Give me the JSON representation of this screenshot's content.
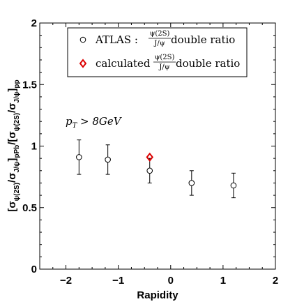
{
  "chart_data": {
    "type": "scatter",
    "xlabel": "Rapidity",
    "ylabel": {
      "open": "[σ",
      "sub1": "ψ(2S)",
      "mid1": "/σ",
      "sub2": "J/ψ",
      "mid2": "]",
      "sub3": "pPb",
      "mid3": "/[σ",
      "sub4": "ψ(2S)",
      "mid4": "/σ",
      "sub5": "J/ψ",
      "mid5": "]",
      "sub6": "pp"
    },
    "xlim": [
      -2.5,
      2
    ],
    "ylim": [
      0,
      2
    ],
    "x_ticks": [
      -2,
      -1,
      0,
      1,
      2
    ],
    "y_ticks": [
      0,
      0.5,
      1,
      1.5,
      2
    ],
    "x_tick_labels": [
      "−2",
      "−1",
      "0",
      "1",
      "2"
    ],
    "y_tick_labels": [
      "0",
      "0.5",
      "1",
      "1.5",
      "2"
    ],
    "annotation": {
      "text_main": "p",
      "text_sub": "T",
      "text_rest": " > 8GeV"
    },
    "legend": {
      "entries": [
        {
          "marker": "circle",
          "prefix": "ATLAS : ",
          "num": "ψ(2S)",
          "den": "J/ψ",
          "suffix": " double ratio"
        },
        {
          "marker": "diamond",
          "prefix": "calculated ",
          "num": "ψ(2S)",
          "den": "J/ψ",
          "suffix": " double ratio"
        }
      ]
    },
    "series": [
      {
        "marker": "circle",
        "color": "#000000",
        "points": [
          {
            "x": -1.75,
            "y": 0.91,
            "err": 0.14
          },
          {
            "x": -1.2,
            "y": 0.89,
            "err": 0.12
          },
          {
            "x": -0.4,
            "y": 0.8,
            "err": 0.1
          },
          {
            "x": 0.4,
            "y": 0.7,
            "err": 0.1
          },
          {
            "x": 1.2,
            "y": 0.68,
            "err": 0.1
          }
        ]
      },
      {
        "marker": "diamond",
        "color": "#dd0000",
        "points": [
          {
            "x": -0.4,
            "y": 0.91
          }
        ]
      }
    ]
  }
}
